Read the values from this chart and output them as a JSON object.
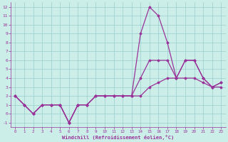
{
  "title": "",
  "xlabel": "Windchill (Refroidissement éolien,°C)",
  "ylabel": "",
  "bg_color": "#cceee8",
  "grid_color": "#99cccc",
  "line_color": "#993399",
  "xlim": [
    -0.5,
    23.5
  ],
  "ylim": [
    -1.5,
    12.5
  ],
  "xticks": [
    0,
    1,
    2,
    3,
    4,
    5,
    6,
    7,
    8,
    9,
    10,
    11,
    12,
    13,
    14,
    15,
    16,
    17,
    18,
    19,
    20,
    21,
    22,
    23
  ],
  "yticks": [
    -1,
    0,
    1,
    2,
    3,
    4,
    5,
    6,
    7,
    8,
    9,
    10,
    11,
    12
  ],
  "series": [
    [
      2,
      1,
      0,
      1,
      1,
      1,
      -1,
      1,
      1,
      2,
      2,
      2,
      2,
      2,
      9,
      12,
      11,
      8,
      4,
      6,
      6,
      4,
      3,
      3
    ],
    [
      2,
      1,
      0,
      1,
      1,
      1,
      -1,
      1,
      1,
      2,
      2,
      2,
      2,
      2,
      4,
      6,
      6,
      6,
      4,
      6,
      6,
      4,
      3,
      3.5
    ],
    [
      2,
      1,
      0,
      1,
      1,
      1,
      -1,
      1,
      1,
      2,
      2,
      2,
      2,
      2,
      2,
      3,
      3.5,
      4,
      4,
      4,
      4,
      3.5,
      3,
      3.5
    ]
  ]
}
